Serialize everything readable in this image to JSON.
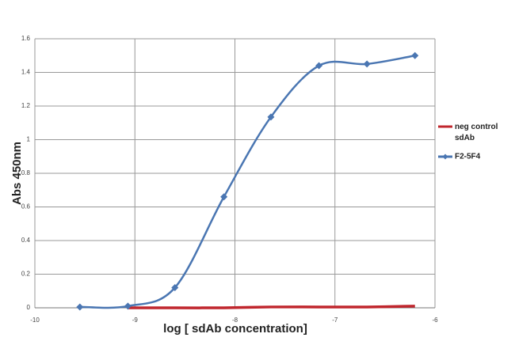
{
  "chart_data": {
    "type": "line",
    "x_label": "log [ sdAb concentration]",
    "y_label": "Abs 450nm",
    "xlim": [
      -10,
      -6
    ],
    "xticks": [
      -10,
      -9,
      -8,
      -7,
      -6
    ],
    "ylim": [
      0,
      1.6
    ],
    "yticks": [
      0,
      0.2,
      0.4,
      0.6,
      0.8,
      1,
      1.2,
      1.4,
      1.6
    ],
    "grid": true,
    "legend": "right",
    "series": [
      {
        "name": "neg control sdAb",
        "color": "#c0262d",
        "marker": false,
        "x": [
          -9.07,
          -8.6,
          -8.11,
          -7.64,
          -7.16,
          -6.68,
          -6.2
        ],
        "values": [
          0,
          0,
          0,
          0.005,
          0.005,
          0.005,
          0.01
        ]
      },
      {
        "name": "F2-5F4",
        "color": "#4a76b2",
        "marker": true,
        "x": [
          -9.55,
          -9.07,
          -8.6,
          -8.11,
          -7.64,
          -7.16,
          -6.68,
          -6.2
        ],
        "values": [
          0.005,
          0.01,
          0.12,
          0.66,
          1.135,
          1.44,
          1.45,
          1.5
        ]
      }
    ]
  }
}
